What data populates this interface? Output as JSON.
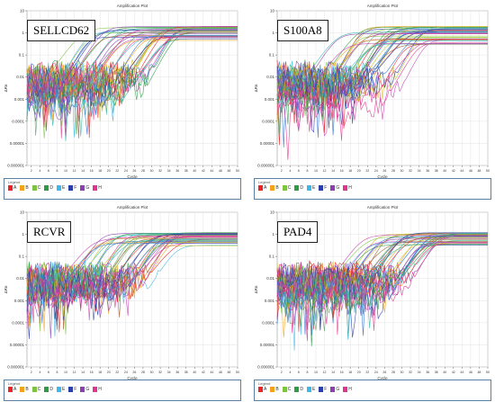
{
  "panels": [
    {
      "gene_label": "SELLCD62",
      "legend_title": "Legend",
      "chart_data": {
        "type": "line",
        "title": "Amplification Plot",
        "xlabel": "Cycle",
        "ylabel": "ΔRn",
        "yscale": "log",
        "ylim": [
          1e-06,
          10
        ],
        "xlim": [
          1,
          50
        ],
        "ytick_labels": [
          "10",
          "1",
          "0.1",
          "0.01",
          "0.001",
          "0.0001",
          "0.00001",
          "0.000001"
        ],
        "xtick_labels": [
          "2",
          "4",
          "6",
          "8",
          "10",
          "12",
          "14",
          "16",
          "18",
          "20",
          "22",
          "24",
          "26",
          "28",
          "30",
          "32",
          "34",
          "36",
          "38",
          "40",
          "42",
          "44",
          "46",
          "48",
          "50"
        ],
        "series_count": 40,
        "rise_cycle_range": [
          14,
          36
        ],
        "plateau_range": [
          0.3,
          2.0
        ],
        "grid": true,
        "legend_position": "below"
      }
    },
    {
      "gene_label": "S100A8",
      "legend_title": "Legend",
      "chart_data": {
        "type": "line",
        "title": "Amplification Plot",
        "xlabel": "Cycle",
        "ylabel": "ΔRn",
        "yscale": "log",
        "ylim": [
          1e-06,
          10
        ],
        "xlim": [
          1,
          50
        ],
        "ytick_labels": [
          "10",
          "1",
          "0.1",
          "0.01",
          "0.001",
          "0.0001",
          "0.00001",
          "0.000001"
        ],
        "xtick_labels": [
          "2",
          "4",
          "6",
          "8",
          "10",
          "12",
          "14",
          "16",
          "18",
          "20",
          "22",
          "24",
          "26",
          "28",
          "30",
          "32",
          "34",
          "36",
          "38",
          "40",
          "42",
          "44",
          "46",
          "48",
          "50"
        ],
        "series_count": 40,
        "rise_cycle_range": [
          14,
          36
        ],
        "plateau_range": [
          0.3,
          2.0
        ],
        "grid": true,
        "legend_position": "below"
      }
    },
    {
      "gene_label": "RCVR",
      "legend_title": "Legend",
      "chart_data": {
        "type": "line",
        "title": "Amplification Plot",
        "xlabel": "Cycle",
        "ylabel": "ΔRn",
        "yscale": "log",
        "ylim": [
          1e-06,
          10
        ],
        "xlim": [
          1,
          50
        ],
        "ytick_labels": [
          "10",
          "1",
          "0.1",
          "0.01",
          "0.001",
          "0.0001",
          "0.00001",
          "0.000001"
        ],
        "xtick_labels": [
          "2",
          "4",
          "6",
          "8",
          "10",
          "12",
          "14",
          "16",
          "18",
          "20",
          "22",
          "24",
          "26",
          "28",
          "30",
          "32",
          "34",
          "36",
          "38",
          "40",
          "42",
          "44",
          "46",
          "48",
          "50"
        ],
        "series_count": 40,
        "rise_cycle_range": [
          16,
          36
        ],
        "plateau_range": [
          0.3,
          1.2
        ],
        "grid": true,
        "legend_position": "below"
      }
    },
    {
      "gene_label": "PAD4",
      "legend_title": "Legend",
      "chart_data": {
        "type": "line",
        "title": "Amplification Plot",
        "xlabel": "Cycle",
        "ylabel": "ΔRn",
        "yscale": "log",
        "ylim": [
          1e-06,
          10
        ],
        "xlim": [
          1,
          50
        ],
        "ytick_labels": [
          "10",
          "1",
          "0.1",
          "0.01",
          "0.001",
          "0.0001",
          "0.00001",
          "0.000001"
        ],
        "xtick_labels": [
          "2",
          "4",
          "6",
          "8",
          "10",
          "12",
          "14",
          "16",
          "18",
          "20",
          "22",
          "24",
          "26",
          "28",
          "30",
          "32",
          "34",
          "36",
          "38",
          "40",
          "42",
          "44",
          "46",
          "48",
          "50"
        ],
        "series_count": 40,
        "rise_cycle_range": [
          20,
          40
        ],
        "plateau_range": [
          0.3,
          1.2
        ],
        "grid": true,
        "legend_position": "below"
      }
    }
  ],
  "legend_items": [
    {
      "label": "A",
      "color": "#e8242b"
    },
    {
      "label": "B",
      "color": "#f2a31a"
    },
    {
      "label": "C",
      "color": "#7fc242"
    },
    {
      "label": "D",
      "color": "#2e9c46"
    },
    {
      "label": "E",
      "color": "#3fb8e8"
    },
    {
      "label": "F",
      "color": "#2b3da8"
    },
    {
      "label": "G",
      "color": "#8a3fb5"
    },
    {
      "label": "H",
      "color": "#e0358f"
    }
  ]
}
